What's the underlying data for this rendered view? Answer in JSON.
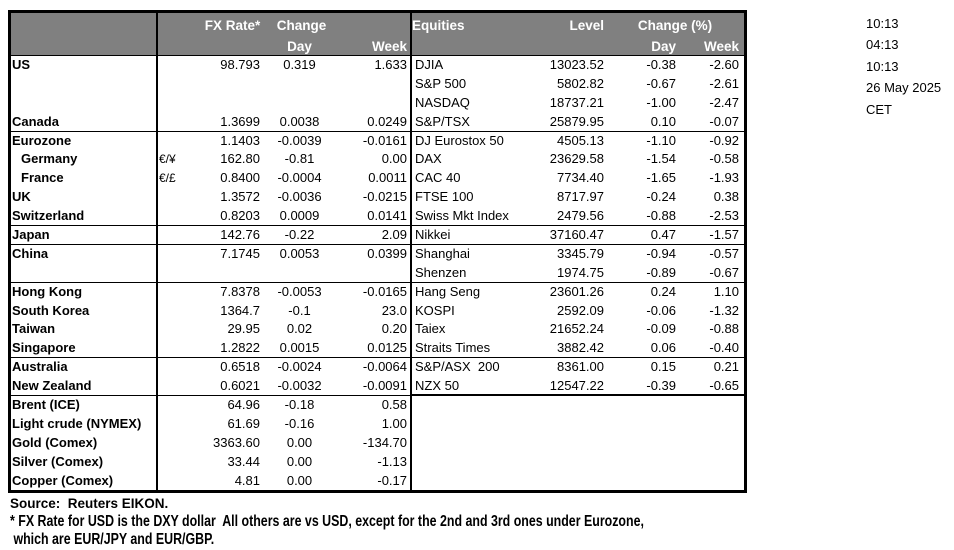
{
  "table": {
    "header": {
      "fx_rate": "FX Rate*",
      "change": "Change",
      "day": "Day",
      "week": "Week",
      "equities": "Equities",
      "level": "Level",
      "change_pct": "Change (%)"
    },
    "rows": [
      {
        "label": "US",
        "pair": "",
        "rate": "98.793",
        "day": "0.319",
        "week": "1.633",
        "eq_label": "DJIA",
        "level": "13023.52",
        "eq_day": "-0.38",
        "eq_week": "-2.60"
      },
      {
        "label": "",
        "pair": "",
        "rate": "",
        "day": "",
        "week": "",
        "eq_label": "S&P 500",
        "level": "5802.82",
        "eq_day": "-0.67",
        "eq_week": "-2.61"
      },
      {
        "label": "",
        "pair": "",
        "rate": "",
        "day": "",
        "week": "",
        "eq_label": "NASDAQ",
        "level": "18737.21",
        "eq_day": "-1.00",
        "eq_week": "-2.47"
      },
      {
        "label": "Canada",
        "pair": "",
        "rate": "1.3699",
        "day": "0.0038",
        "week": "0.0249",
        "eq_label": "S&P/TSX",
        "level": "25879.95",
        "eq_day": "0.10",
        "eq_week": "-0.07",
        "sep": true
      },
      {
        "label": "Eurozone",
        "pair": "",
        "rate": "1.1403",
        "day": "-0.0039",
        "week": "-0.0161",
        "eq_label": "DJ Eurostox 50",
        "level": "4505.13",
        "eq_day": "-1.10",
        "eq_week": "-0.92"
      },
      {
        "label": "Germany",
        "pair": "€/¥",
        "rate": "162.80",
        "day": "-0.81",
        "week": "0.00",
        "eq_label": "DAX",
        "level": "23629.58",
        "eq_day": "-1.54",
        "eq_week": "-0.58",
        "indent": true
      },
      {
        "label": "France",
        "pair": "€/£",
        "rate": "0.8400",
        "day": "-0.0004",
        "week": "0.0011",
        "eq_label": "CAC 40",
        "level": "7734.40",
        "eq_day": "-1.65",
        "eq_week": "-1.93",
        "indent": true
      },
      {
        "label": "UK",
        "pair": "",
        "rate": "1.3572",
        "day": "-0.0036",
        "week": "-0.0215",
        "eq_label": "FTSE 100",
        "level": "8717.97",
        "eq_day": "-0.24",
        "eq_week": "0.38"
      },
      {
        "label": "Switzerland",
        "pair": "",
        "rate": "0.8203",
        "day": "0.0009",
        "week": "0.0141",
        "eq_label": "Swiss Mkt Index",
        "level": "2479.56",
        "eq_day": "-0.88",
        "eq_week": "-2.53",
        "sep": true
      },
      {
        "label": "Japan",
        "pair": "",
        "rate": "142.76",
        "day": "-0.22",
        "week": "2.09",
        "eq_label": "Nikkei",
        "level": "37160.47",
        "eq_day": "0.47",
        "eq_week": "-1.57",
        "sep": true
      },
      {
        "label": "China",
        "pair": "",
        "rate": "7.1745",
        "day": "0.0053",
        "week": "0.0399",
        "eq_label": "Shanghai",
        "level": "3345.79",
        "eq_day": "-0.94",
        "eq_week": "-0.57"
      },
      {
        "label": "",
        "pair": "",
        "rate": "",
        "day": "",
        "week": "",
        "eq_label": "Shenzen",
        "level": "1974.75",
        "eq_day": "-0.89",
        "eq_week": "-0.67",
        "sep": true
      },
      {
        "label": "Hong Kong",
        "pair": "",
        "rate": "7.8378",
        "day": "-0.0053",
        "week": "-0.0165",
        "eq_label": "Hang Seng",
        "level": "23601.26",
        "eq_day": "0.24",
        "eq_week": "1.10"
      },
      {
        "label": "South Korea",
        "pair": "",
        "rate": "1364.7",
        "day": "-0.1",
        "week": "23.0",
        "eq_label": "KOSPI",
        "level": "2592.09",
        "eq_day": "-0.06",
        "eq_week": "-1.32"
      },
      {
        "label": "Taiwan",
        "pair": "",
        "rate": "29.95",
        "day": "0.02",
        "week": "0.20",
        "eq_label": "Taiex",
        "level": "21652.24",
        "eq_day": "-0.09",
        "eq_week": "-0.88"
      },
      {
        "label": "Singapore",
        "pair": "",
        "rate": "1.2822",
        "day": "0.0015",
        "week": "0.0125",
        "eq_label": "Straits Times",
        "level": "3882.42",
        "eq_day": "0.06",
        "eq_week": "-0.40",
        "sep": true
      },
      {
        "label": "Australia",
        "pair": "",
        "rate": "0.6518",
        "day": "-0.0024",
        "week": "-0.0064",
        "eq_label": "S&P/ASX  200",
        "level": "8361.00",
        "eq_day": "0.15",
        "eq_week": "0.21"
      },
      {
        "label": "New Zealand",
        "pair": "",
        "rate": "0.6021",
        "day": "-0.0032",
        "week": "-0.0091",
        "eq_label": "NZX 50",
        "level": "12547.22",
        "eq_day": "-0.39",
        "eq_week": "-0.65",
        "sep": true,
        "eq_end": true
      },
      {
        "label": "Brent (ICE)",
        "pair": "",
        "rate": "64.96",
        "day": "-0.18",
        "week": "0.58",
        "eq_label": "",
        "level": "",
        "eq_day": "",
        "eq_week": ""
      },
      {
        "label": "Light crude (NYMEX)",
        "pair": "",
        "rate": "61.69",
        "day": "-0.16",
        "week": "1.00",
        "eq_label": "",
        "level": "",
        "eq_day": "",
        "eq_week": ""
      },
      {
        "label": "Gold (Comex)",
        "pair": "",
        "rate": "3363.60",
        "day": "0.00",
        "week": "-134.70",
        "eq_label": "",
        "level": "",
        "eq_day": "",
        "eq_week": ""
      },
      {
        "label": "Silver (Comex)",
        "pair": "",
        "rate": "33.44",
        "day": "0.00",
        "week": "-1.13",
        "eq_label": "",
        "level": "",
        "eq_day": "",
        "eq_week": ""
      },
      {
        "label": "Copper (Comex)",
        "pair": "",
        "rate": "4.81",
        "day": "0.00",
        "week": "-0.17",
        "eq_label": "",
        "level": "",
        "eq_day": "",
        "eq_week": ""
      }
    ]
  },
  "timestamps": [
    "10:13",
    "04:13",
    "10:13",
    "26 May 2025",
    "CET"
  ],
  "footnotes": {
    "source": "Source:  Reuters EIKON.",
    "note_line1": "* FX Rate for USD is the DXY dollar  All others are vs USD, except for the 2nd and 3rd ones under Eurozone,",
    "note_line2": " which are EUR/JPY and EUR/GBP."
  },
  "colors": {
    "header_bg": "#808080",
    "header_text": "#ffffff",
    "border": "#000000"
  }
}
